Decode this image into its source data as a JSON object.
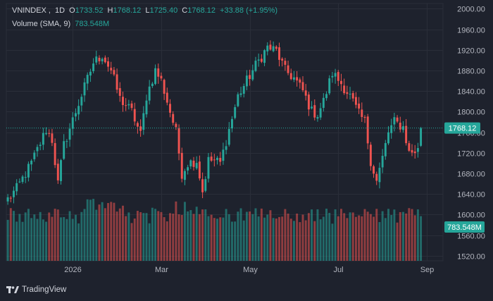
{
  "legend": {
    "symbol": "VNINDEX",
    "interval": "1D",
    "o_label": "O",
    "o_value": "1733.52",
    "h_label": "H",
    "h_value": "1768.12",
    "l_label": "L",
    "l_value": "1725.40",
    "c_label": "C",
    "c_value": "1768.12",
    "change": "+33.88 (+1.95%)",
    "volume_label": "Volume (SMA, 9)",
    "volume_value": "783.548M"
  },
  "price_tag": "1768.12",
  "volume_tag": "783.548M",
  "footer": {
    "brand": "TradingView",
    "logo_icon": "tradingview-logo-icon"
  },
  "colors": {
    "background": "#1e222d",
    "up": "#26a69a",
    "down": "#ef5350",
    "grid": "#2a2e39",
    "text": "#b2b5be"
  },
  "chart_data": {
    "type": "candlestick",
    "title": "",
    "y_axis": {
      "min": 1510,
      "max": 2010,
      "ticks": [
        "2000.00",
        "1960.00",
        "1920.00",
        "1880.00",
        "1840.00",
        "1800.00",
        "1760.00",
        "1720.00",
        "1680.00",
        "1640.00",
        "1600.00",
        "1560.00",
        "1520.00"
      ]
    },
    "x_axis": {
      "labels": [
        "2026",
        "Mar",
        "May",
        "Jul",
        "Sep"
      ],
      "label_bar_index": [
        22,
        52,
        82,
        112,
        142
      ]
    },
    "last_price": 1768.12,
    "grid": true,
    "anchors": [
      [
        0,
        1630
      ],
      [
        3,
        1650
      ],
      [
        8,
        1700
      ],
      [
        13,
        1765
      ],
      [
        15,
        1745
      ],
      [
        17,
        1660
      ],
      [
        19,
        1735
      ],
      [
        23,
        1800
      ],
      [
        29,
        1895
      ],
      [
        32,
        1910
      ],
      [
        35,
        1880
      ],
      [
        38,
        1825
      ],
      [
        42,
        1800
      ],
      [
        45,
        1755
      ],
      [
        47,
        1830
      ],
      [
        50,
        1880
      ],
      [
        52,
        1860
      ],
      [
        55,
        1800
      ],
      [
        57,
        1760
      ],
      [
        59,
        1680
      ],
      [
        61,
        1700
      ],
      [
        64,
        1705
      ],
      [
        66,
        1645
      ],
      [
        68,
        1705
      ],
      [
        70,
        1705
      ],
      [
        72,
        1700
      ],
      [
        75,
        1765
      ],
      [
        78,
        1830
      ],
      [
        81,
        1860
      ],
      [
        84,
        1890
      ],
      [
        88,
        1925
      ],
      [
        91,
        1918
      ],
      [
        94,
        1880
      ],
      [
        97,
        1865
      ],
      [
        100,
        1840
      ],
      [
        103,
        1800
      ],
      [
        105,
        1795
      ],
      [
        107,
        1820
      ],
      [
        110,
        1875
      ],
      [
        113,
        1855
      ],
      [
        116,
        1830
      ],
      [
        119,
        1795
      ],
      [
        121,
        1780
      ],
      [
        123,
        1705
      ],
      [
        125,
        1665
      ],
      [
        127,
        1710
      ],
      [
        129,
        1760
      ],
      [
        131,
        1780
      ],
      [
        134,
        1770
      ],
      [
        136,
        1720
      ],
      [
        139,
        1725
      ],
      [
        140,
        1768
      ]
    ],
    "volume_axis_max": 1000
  }
}
